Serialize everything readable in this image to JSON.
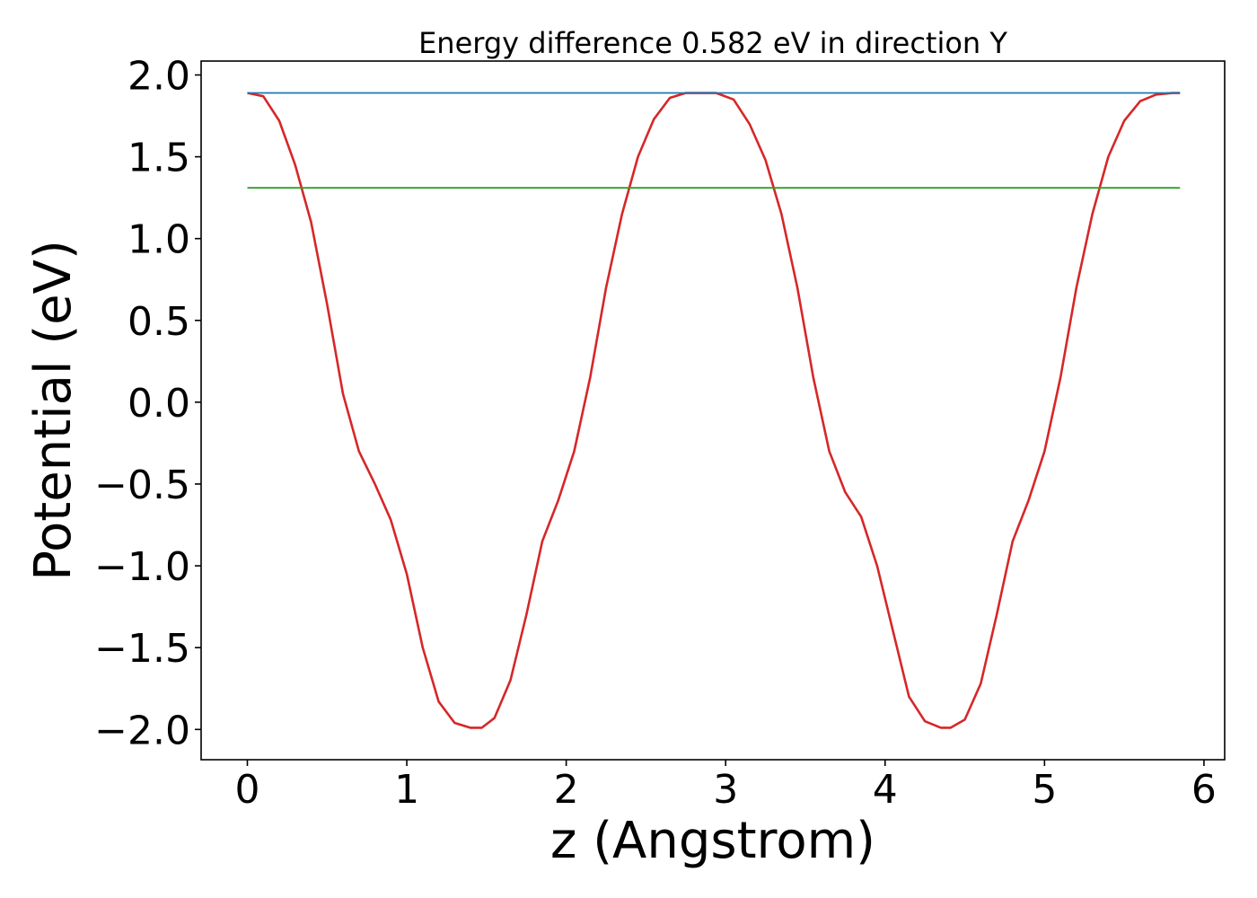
{
  "chart_data": {
    "type": "line",
    "title": "Energy difference 0.582 eV in direction Y",
    "xlabel": "z (Angstrom)",
    "ylabel": "Potential (eV)",
    "xlim": [
      -0.29,
      6.13
    ],
    "ylim": [
      -2.185,
      2.085
    ],
    "xticks": [
      0,
      1,
      2,
      3,
      4,
      5,
      6
    ],
    "xtick_labels": [
      "0",
      "1",
      "2",
      "3",
      "4",
      "5",
      "6"
    ],
    "yticks": [
      2.0,
      1.5,
      1.0,
      0.5,
      0.0,
      -0.5,
      -1.0,
      -1.5,
      -2.0
    ],
    "ytick_labels": [
      "2.0",
      "1.5",
      "1.0",
      "0.5",
      "0.0",
      "−0.5",
      "−1.0",
      "−1.5",
      "−2.0"
    ],
    "grid": false,
    "series": [
      {
        "color": "#d62728",
        "x": [
          0.0,
          0.1,
          0.2,
          0.3,
          0.4,
          0.5,
          0.6,
          0.7,
          0.8,
          0.9,
          1.0,
          1.1,
          1.2,
          1.3,
          1.4,
          1.47,
          1.55,
          1.65,
          1.75,
          1.85,
          1.95,
          2.05,
          2.15,
          2.25,
          2.35,
          2.45,
          2.55,
          2.65,
          2.75,
          2.85,
          2.94,
          3.05,
          3.15,
          3.25,
          3.35,
          3.45,
          3.55,
          3.65,
          3.75,
          3.85,
          3.95,
          4.05,
          4.15,
          4.25,
          4.35,
          4.41,
          4.5,
          4.6,
          4.7,
          4.8,
          4.9,
          5.0,
          5.1,
          5.2,
          5.3,
          5.4,
          5.5,
          5.6,
          5.7,
          5.8,
          5.85
        ],
        "y": [
          1.89,
          1.87,
          1.72,
          1.45,
          1.1,
          0.6,
          0.05,
          -0.3,
          -0.5,
          -0.72,
          -1.05,
          -1.5,
          -1.83,
          -1.96,
          -1.99,
          -1.99,
          -1.93,
          -1.7,
          -1.3,
          -0.85,
          -0.6,
          -0.3,
          0.15,
          0.7,
          1.15,
          1.5,
          1.73,
          1.86,
          1.89,
          1.89,
          1.89,
          1.85,
          1.7,
          1.48,
          1.15,
          0.7,
          0.15,
          -0.3,
          -0.55,
          -0.7,
          -1.0,
          -1.4,
          -1.8,
          -1.95,
          -1.99,
          -1.99,
          -1.94,
          -1.72,
          -1.3,
          -0.85,
          -0.6,
          -0.3,
          0.15,
          0.7,
          1.15,
          1.5,
          1.72,
          1.84,
          1.88,
          1.89,
          1.89
        ]
      },
      {
        "color": "#1f77b4",
        "x": [
          0.0,
          5.85
        ],
        "y": [
          1.89,
          1.89
        ]
      },
      {
        "color": "#2ca02c",
        "x": [
          0.0,
          5.85
        ],
        "y": [
          1.31,
          1.31
        ]
      }
    ]
  }
}
